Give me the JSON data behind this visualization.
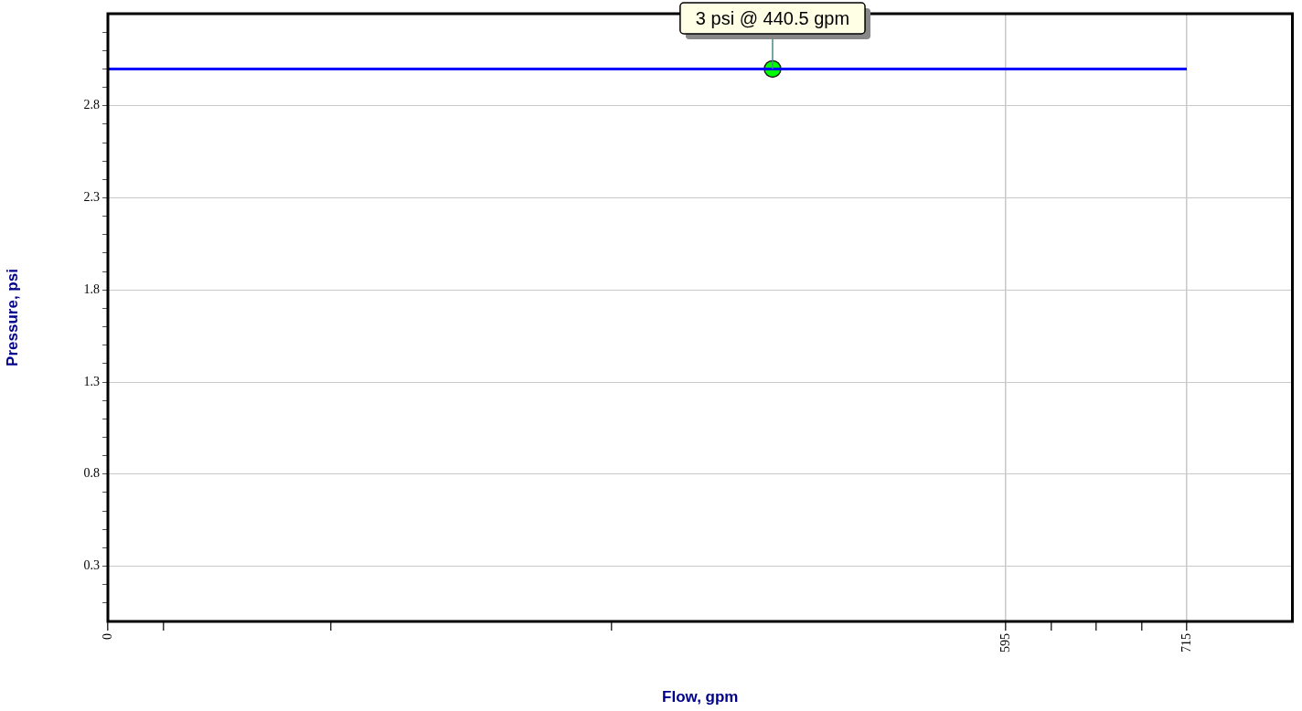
{
  "chart_data": {
    "type": "line",
    "xlabel": "Flow, gpm",
    "ylabel": "Pressure, psi",
    "xlim": [
      0,
      785
    ],
    "ylim": [
      0,
      3.3
    ],
    "xticks": [
      0,
      {
        "value": 37,
        "label": null
      },
      {
        "value": 148,
        "label": null
      },
      {
        "value": 334,
        "label": null
      },
      595,
      {
        "value": 625,
        "label": null
      },
      {
        "value": 655,
        "label": null
      },
      {
        "value": 685,
        "label": null
      },
      715
    ],
    "yticks": [
      {
        "value": 0.1,
        "label": null
      },
      {
        "value": 0.2,
        "label": null
      },
      0.3,
      {
        "value": 0.4,
        "label": null
      },
      {
        "value": 0.5,
        "label": null
      },
      {
        "value": 0.6,
        "label": null
      },
      {
        "value": 0.7,
        "label": null
      },
      0.8,
      {
        "value": 0.9,
        "label": null
      },
      {
        "value": 1.0,
        "label": null
      },
      {
        "value": 1.1,
        "label": null
      },
      {
        "value": 1.2,
        "label": null
      },
      1.3,
      {
        "value": 1.4,
        "label": null
      },
      {
        "value": 1.5,
        "label": null
      },
      {
        "value": 1.6,
        "label": null
      },
      {
        "value": 1.7,
        "label": null
      },
      1.8,
      {
        "value": 1.9,
        "label": null
      },
      {
        "value": 2.0,
        "label": null
      },
      {
        "value": 2.1,
        "label": null
      },
      {
        "value": 2.2,
        "label": null
      },
      2.3,
      {
        "value": 2.4,
        "label": null
      },
      {
        "value": 2.5,
        "label": null
      },
      {
        "value": 2.6,
        "label": null
      },
      {
        "value": 2.7,
        "label": null
      },
      2.8,
      {
        "value": 2.9,
        "label": null
      },
      {
        "value": 3.0,
        "label": null
      },
      {
        "value": 3.1,
        "label": null
      },
      {
        "value": 3.2,
        "label": null
      }
    ],
    "series": [
      {
        "color": "#0000ff",
        "x": [
          0,
          715
        ],
        "values": [
          3,
          3
        ],
        "marker": "none"
      },
      {
        "type": "scatter",
        "color": "#00ff00",
        "x": [
          440.5
        ],
        "values": [
          3
        ],
        "marker": "circle"
      }
    ],
    "annotations": [
      {
        "text": "3 psi @ 440.5 gpm",
        "x": 440.5,
        "y": 3
      }
    ],
    "grid": true,
    "legend": false
  }
}
